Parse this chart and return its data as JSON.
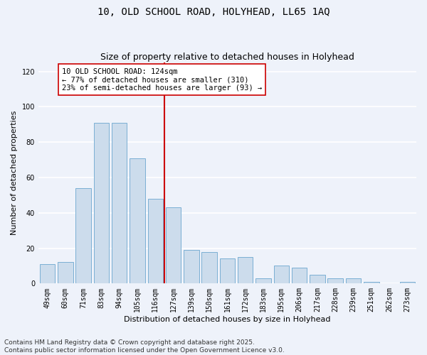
{
  "title": "10, OLD SCHOOL ROAD, HOLYHEAD, LL65 1AQ",
  "subtitle": "Size of property relative to detached houses in Holyhead",
  "xlabel": "Distribution of detached houses by size in Holyhead",
  "ylabel": "Number of detached properties",
  "bar_color": "#ccdcec",
  "bar_edge_color": "#7aafd4",
  "background_color": "#eef2fa",
  "grid_color": "#ffffff",
  "categories": [
    "49sqm",
    "60sqm",
    "71sqm",
    "83sqm",
    "94sqm",
    "105sqm",
    "116sqm",
    "127sqm",
    "139sqm",
    "150sqm",
    "161sqm",
    "172sqm",
    "183sqm",
    "195sqm",
    "206sqm",
    "217sqm",
    "228sqm",
    "239sqm",
    "251sqm",
    "262sqm",
    "273sqm"
  ],
  "values": [
    11,
    12,
    54,
    91,
    91,
    71,
    48,
    43,
    19,
    18,
    14,
    15,
    3,
    10,
    9,
    5,
    3,
    3,
    1,
    0,
    1
  ],
  "vline_index": 7,
  "vline_color": "#cc0000",
  "annotation_text": "10 OLD SCHOOL ROAD: 124sqm\n← 77% of detached houses are smaller (310)\n23% of semi-detached houses are larger (93) →",
  "annotation_box_color": "#ffffff",
  "annotation_border_color": "#cc0000",
  "ylim": [
    0,
    125
  ],
  "yticks": [
    0,
    20,
    40,
    60,
    80,
    100,
    120
  ],
  "footer": "Contains HM Land Registry data © Crown copyright and database right 2025.\nContains public sector information licensed under the Open Government Licence v3.0.",
  "title_fontsize": 10,
  "subtitle_fontsize": 9,
  "axis_label_fontsize": 8,
  "tick_fontsize": 7,
  "annotation_fontsize": 7.5,
  "footer_fontsize": 6.5
}
